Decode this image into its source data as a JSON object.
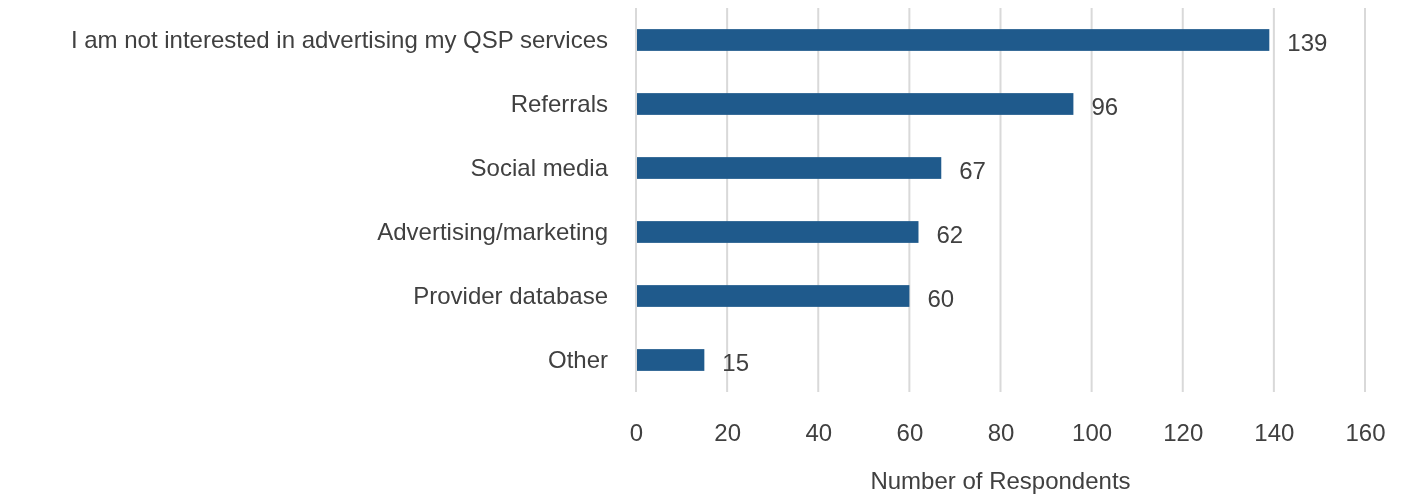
{
  "chart_data": {
    "type": "bar",
    "orientation": "horizontal",
    "categories": [
      "I am not interested in advertising my QSP services",
      "Referrals",
      "Social media",
      "Advertising/marketing",
      "Provider database",
      "Other"
    ],
    "values": [
      139,
      96,
      67,
      62,
      60,
      15
    ],
    "color": "#1f5a8c",
    "xlim": [
      0,
      160
    ],
    "xticks": [
      0,
      20,
      40,
      60,
      80,
      100,
      120,
      140,
      160
    ],
    "xlabel": "Number of Respondents",
    "grid": "x",
    "data_labels": true
  }
}
